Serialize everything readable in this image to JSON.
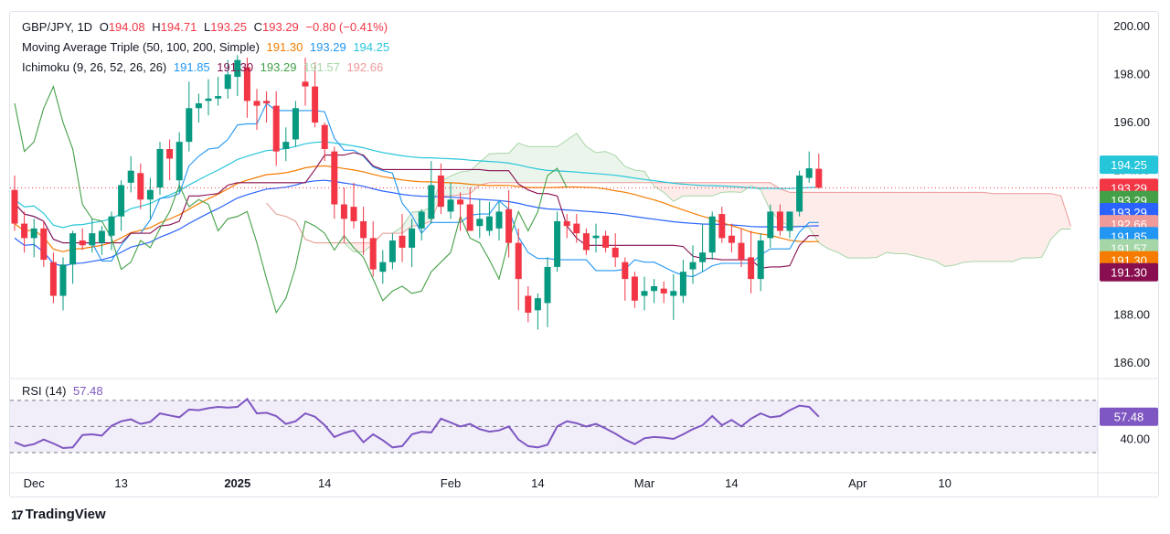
{
  "header": {
    "symbol": "GBP/JPY, 1D",
    "ohlc": {
      "o_label": "O",
      "o": "194.08",
      "h_label": "H",
      "h": "194.71",
      "l_label": "L",
      "l": "193.25",
      "c_label": "C",
      "c": "193.29",
      "chg": "−0.80 (−0.41%)"
    },
    "ma": {
      "label": "Moving Average Triple (50, 100, 200, Simple)",
      "v1": "191.30",
      "v2": "193.29",
      "v3": "194.25"
    },
    "ichimoku": {
      "label": "Ichimoku (9, 26, 52, 26, 26)",
      "v1": "191.85",
      "v2": "191.30",
      "v3": "193.29",
      "v4": "191.57",
      "v5": "192.66"
    }
  },
  "rsi_legend": {
    "label": "RSI (14)",
    "value": "57.48"
  },
  "brand": {
    "name": "TradingView"
  },
  "colors": {
    "up": "#089981",
    "down": "#f23645",
    "ma50": "#f57c00",
    "ma100": "#2962ff",
    "ma200": "#26c6da",
    "tenkan": "#2196f3",
    "kijun": "#880e4f",
    "chikou": "#43a047",
    "spanA": "#a5d6a7",
    "spanB": "#ef9a9a",
    "rsi": "#7e57c2"
  },
  "chart_data": {
    "type": "candlestick",
    "price_axis": {
      "ylim": [
        185.4,
        200.6
      ],
      "ticks": [
        "200.00",
        "198.00",
        "196.00",
        "194.00",
        "188.00",
        "186.00"
      ],
      "scale": "linear"
    },
    "x_axis": {
      "tick_labels": [
        "Dec",
        "13",
        "2025",
        "14",
        "Feb",
        "14",
        "Mar",
        "14",
        "Apr",
        "10"
      ],
      "tick_index": [
        2,
        11,
        23,
        32,
        45,
        54,
        65,
        74,
        87,
        96
      ]
    },
    "last_value_labels": [
      {
        "text": "194.25",
        "color": "#26c6da",
        "y": 194.25
      },
      {
        "text": "193.29",
        "color": "#f23645",
        "y": 193.29
      },
      {
        "text": "193.29",
        "color": "#43a047",
        "y": 192.78
      },
      {
        "text": "193.29",
        "color": "#2962ff",
        "y": 192.28
      },
      {
        "text": "192.66",
        "color": "#ef9a9a",
        "y": 191.78
      },
      {
        "text": "191.85",
        "color": "#2196f3",
        "y": 191.28
      },
      {
        "text": "191.57",
        "color": "#a5d6a7",
        "y": 190.78
      },
      {
        "text": "191.30",
        "color": "#f57c00",
        "y": 190.28
      },
      {
        "text": "191.30",
        "color": "#880e4f",
        "y": 189.78
      }
    ],
    "candles": [
      [
        193.2,
        193.8,
        191.5,
        191.8
      ],
      [
        191.8,
        192.3,
        190.6,
        191.2
      ],
      [
        191.2,
        192.0,
        190.4,
        191.6
      ],
      [
        191.6,
        191.9,
        190.0,
        190.3
      ],
      [
        190.2,
        190.6,
        188.5,
        188.8
      ],
      [
        188.8,
        190.4,
        188.2,
        190.1
      ],
      [
        190.1,
        191.5,
        189.3,
        191.4
      ],
      [
        191.1,
        191.6,
        190.7,
        190.9
      ],
      [
        190.9,
        192.0,
        190.6,
        191.4
      ],
      [
        191.0,
        191.7,
        190.5,
        191.5
      ],
      [
        191.3,
        192.3,
        190.7,
        192.1
      ],
      [
        192.1,
        193.6,
        191.5,
        193.4
      ],
      [
        193.5,
        194.6,
        193.1,
        194.0
      ],
      [
        193.9,
        194.3,
        192.4,
        192.8
      ],
      [
        192.8,
        193.7,
        192.0,
        193.2
      ],
      [
        193.3,
        195.2,
        193.0,
        194.9
      ],
      [
        194.9,
        195.3,
        193.6,
        194.5
      ],
      [
        193.6,
        195.6,
        193.1,
        195.2
      ],
      [
        195.2,
        197.7,
        194.8,
        196.6
      ],
      [
        196.6,
        197.2,
        196.0,
        196.8
      ],
      [
        196.9,
        197.8,
        196.3,
        197.0
      ],
      [
        197.0,
        197.9,
        196.7,
        197.1
      ],
      [
        197.4,
        198.6,
        197.0,
        198.0
      ],
      [
        197.9,
        198.8,
        197.1,
        198.6
      ],
      [
        198.3,
        198.7,
        196.2,
        196.9
      ],
      [
        196.9,
        197.4,
        195.7,
        196.7
      ],
      [
        196.9,
        197.3,
        196.0,
        196.8
      ],
      [
        196.7,
        197.3,
        194.2,
        194.8
      ],
      [
        194.9,
        195.8,
        194.4,
        195.2
      ],
      [
        195.3,
        196.9,
        195.0,
        196.6
      ],
      [
        197.7,
        198.7,
        196.7,
        197.5
      ],
      [
        197.5,
        198.5,
        195.8,
        196.0
      ],
      [
        195.9,
        196.0,
        194.4,
        194.9
      ],
      [
        194.8,
        195.0,
        192.0,
        192.6
      ],
      [
        192.6,
        193.3,
        191.0,
        192.0
      ],
      [
        192.5,
        193.5,
        191.6,
        191.9
      ],
      [
        191.9,
        192.5,
        190.5,
        191.2
      ],
      [
        191.2,
        191.9,
        189.6,
        189.9
      ],
      [
        189.8,
        190.7,
        189.3,
        190.2
      ],
      [
        190.2,
        191.4,
        189.9,
        191.1
      ],
      [
        191.3,
        192.2,
        190.2,
        190.8
      ],
      [
        190.8,
        192.0,
        190.0,
        191.6
      ],
      [
        191.6,
        192.4,
        191.1,
        192.3
      ],
      [
        192.0,
        194.4,
        191.8,
        193.4
      ],
      [
        193.8,
        194.3,
        192.2,
        192.5
      ],
      [
        192.3,
        193.5,
        192.0,
        192.8
      ],
      [
        192.8,
        193.1,
        191.5,
        192.6
      ],
      [
        192.6,
        193.3,
        191.6,
        191.5
      ],
      [
        191.7,
        192.8,
        191.2,
        192.0
      ],
      [
        191.5,
        192.7,
        191.3,
        192.1
      ],
      [
        191.6,
        192.7,
        191.1,
        192.3
      ],
      [
        192.4,
        193.2,
        190.4,
        191.0
      ],
      [
        191.0,
        191.6,
        188.2,
        189.5
      ],
      [
        188.8,
        189.2,
        187.7,
        188.1
      ],
      [
        188.2,
        188.9,
        187.4,
        188.7
      ],
      [
        188.5,
        190.4,
        187.5,
        190.0
      ],
      [
        190.0,
        192.3,
        189.8,
        191.9
      ],
      [
        191.9,
        192.2,
        191.2,
        191.7
      ],
      [
        191.8,
        192.2,
        191.0,
        191.4
      ],
      [
        191.4,
        191.6,
        190.5,
        190.7
      ],
      [
        191.2,
        191.8,
        190.6,
        191.3
      ],
      [
        191.3,
        191.5,
        190.6,
        190.8
      ],
      [
        190.8,
        191.4,
        190.0,
        190.4
      ],
      [
        190.2,
        190.4,
        188.6,
        189.5
      ],
      [
        189.6,
        189.8,
        188.3,
        188.6
      ],
      [
        188.8,
        189.6,
        188.2,
        189.0
      ],
      [
        189.0,
        189.5,
        188.5,
        189.2
      ],
      [
        189.1,
        189.4,
        188.5,
        188.9
      ],
      [
        188.8,
        189.7,
        187.8,
        189.0
      ],
      [
        188.8,
        190.3,
        188.5,
        189.8
      ],
      [
        189.9,
        190.9,
        189.3,
        190.2
      ],
      [
        190.2,
        191.8,
        189.8,
        190.6
      ],
      [
        190.6,
        192.3,
        190.3,
        192.1
      ],
      [
        192.2,
        192.5,
        191.0,
        191.2
      ],
      [
        191.3,
        191.8,
        190.6,
        191.0
      ],
      [
        191.0,
        191.6,
        190.0,
        190.3
      ],
      [
        190.4,
        191.5,
        188.9,
        189.5
      ],
      [
        189.5,
        191.4,
        189.0,
        191.1
      ],
      [
        191.2,
        192.6,
        190.8,
        192.3
      ],
      [
        192.3,
        192.6,
        191.3,
        191.5
      ],
      [
        191.5,
        192.3,
        191.2,
        192.3
      ],
      [
        192.3,
        194.0,
        192.1,
        193.8
      ],
      [
        193.7,
        194.8,
        193.5,
        194.1
      ],
      [
        194.08,
        194.71,
        193.25,
        193.29
      ]
    ],
    "indicators_note": "Overlays plotted: MA 50/100/200, Ichimoku tenkan, kijun, chikou, senkou A/B cloud",
    "rsi": {
      "label": "RSI (14)",
      "value": "57.48",
      "ylim": [
        23,
        86
      ],
      "ticks": [
        "40.00"
      ],
      "bands": [
        30,
        70
      ],
      "values": [
        38.0,
        35.0,
        36.5,
        40.0,
        37.0,
        33.5,
        34.0,
        43.5,
        44.0,
        43.0,
        50.5,
        54.0,
        55.5,
        52.0,
        53.5,
        60.0,
        58.5,
        57.0,
        63.0,
        62.5,
        64.0,
        65.0,
        64.5,
        65.0,
        71.0,
        60.0,
        60.5,
        58.0,
        52.0,
        54.0,
        60.0,
        57.5,
        51.0,
        42.0,
        45.0,
        47.0,
        38.0,
        44.0,
        39.5,
        34.0,
        35.0,
        44.0,
        46.0,
        45.5,
        56.0,
        53.0,
        50.0,
        52.0,
        48.0,
        46.0,
        47.0,
        50.0,
        40.0,
        35.0,
        34.0,
        36.0,
        50.0,
        54.0,
        52.5,
        50.0,
        52.0,
        48.5,
        44.5,
        40.0,
        36.5,
        41.0,
        42.0,
        41.5,
        40.5,
        44.0,
        48.0,
        51.0,
        58.0,
        51.0,
        55.0,
        50.0,
        56.0,
        60.0,
        57.0,
        58.0,
        62.5,
        66.0,
        65.0,
        57.48
      ]
    }
  }
}
